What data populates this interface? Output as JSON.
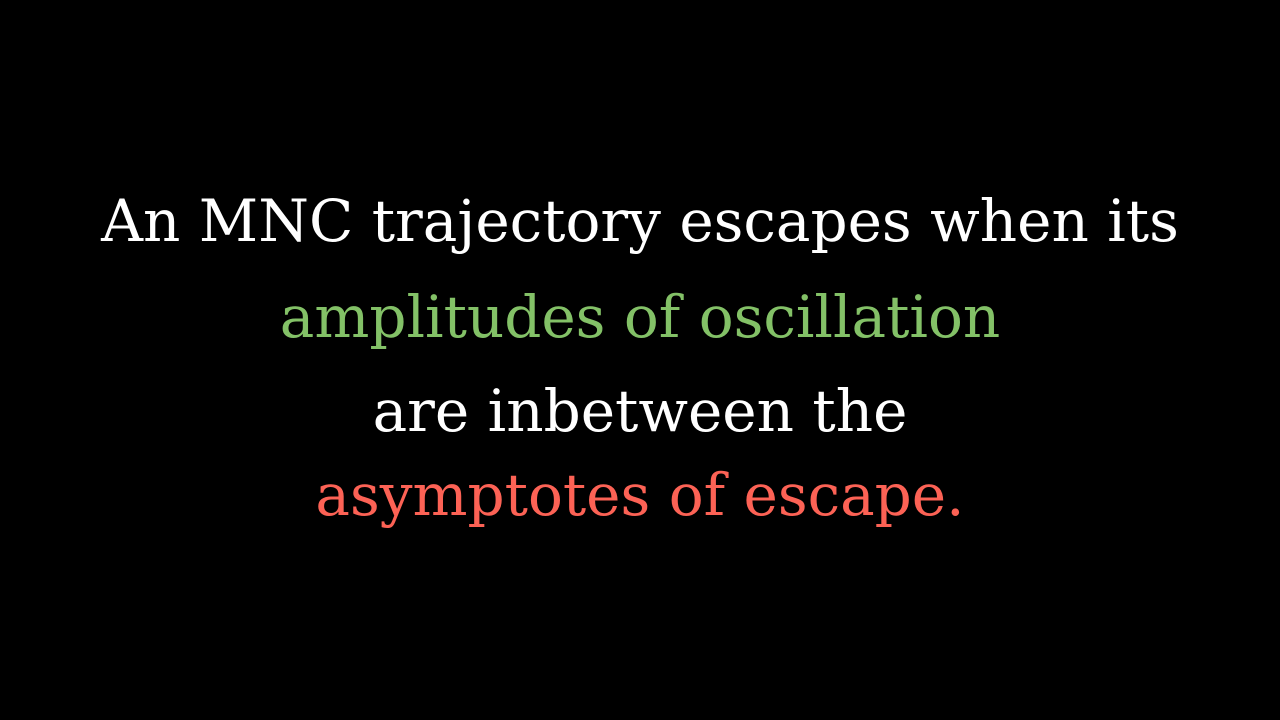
{
  "slide": {
    "lines": [
      {
        "text": "An MNC trajectory escapes when its",
        "color": "#ffffff"
      },
      {
        "text": "amplitudes of oscillation",
        "color": "#83c167"
      },
      {
        "text": "are inbetween the",
        "color": "#ffffff"
      },
      {
        "text": "asymptotes of escape.",
        "color": "#fc6255"
      }
    ],
    "background_color": "#000000"
  }
}
